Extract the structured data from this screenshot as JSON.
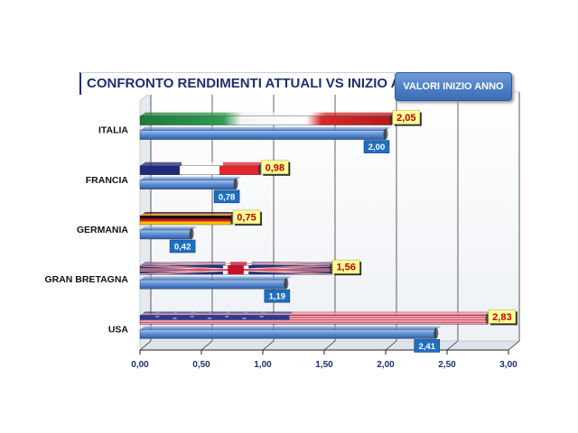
{
  "chart_data": {
    "type": "bar",
    "orientation": "horizontal",
    "title": "CONFRONTO RENDIMENTI ATTUALI VS INIZIO ANNO",
    "legend_label": "VALORI INIZIO ANNO",
    "categories": [
      "ITALIA",
      "FRANCIA",
      "GERMANIA",
      "GRAN BRETAGNA",
      "USA"
    ],
    "series": [
      {
        "values": [
          2.05,
          0.98,
          0.75,
          1.56,
          2.83
        ]
      },
      {
        "name": "VALORI INIZIO ANNO",
        "values": [
          2.0,
          0.78,
          0.42,
          1.19,
          2.41
        ]
      }
    ],
    "value_labels": [
      [
        "2,05",
        "0,98",
        "0,75",
        "1,56",
        "2,83"
      ],
      [
        "2,00",
        "0,78",
        "0,42",
        "1,19",
        "2,41"
      ]
    ],
    "xlim": [
      0,
      3
    ],
    "xticks": [
      "0,00",
      "0,50",
      "1,00",
      "1,50",
      "2,00",
      "2,50",
      "3,00"
    ],
    "grid": true,
    "colors": {
      "title_text": "#1f2f6f",
      "series_bar": "#4a7cc4",
      "series_label_bg": "#1f6fbf",
      "current_label_bg": "#ffff99",
      "current_label_text": "#c00000"
    }
  }
}
